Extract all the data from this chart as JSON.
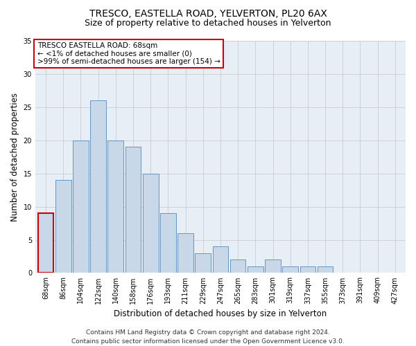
{
  "title": "TRESCO, EASTELLA ROAD, YELVERTON, PL20 6AX",
  "subtitle": "Size of property relative to detached houses in Yelverton",
  "xlabel": "Distribution of detached houses by size in Yelverton",
  "ylabel": "Number of detached properties",
  "categories": [
    "68sqm",
    "86sqm",
    "104sqm",
    "122sqm",
    "140sqm",
    "158sqm",
    "176sqm",
    "193sqm",
    "211sqm",
    "229sqm",
    "247sqm",
    "265sqm",
    "283sqm",
    "301sqm",
    "319sqm",
    "337sqm",
    "355sqm",
    "373sqm",
    "391sqm",
    "409sqm",
    "427sqm"
  ],
  "values": [
    9,
    14,
    20,
    26,
    20,
    19,
    15,
    9,
    6,
    3,
    4,
    2,
    1,
    2,
    1,
    1,
    1,
    0,
    0,
    0,
    0
  ],
  "bar_color": "#c8d8e8",
  "bar_edge_color": "#5588bb",
  "highlight_index": 0,
  "highlight_bar_edge_color": "#cc0000",
  "annotation_text": "TRESCO EASTELLA ROAD: 68sqm\n← <1% of detached houses are smaller (0)\n>99% of semi-detached houses are larger (154) →",
  "annotation_box_color": "#ffffff",
  "annotation_box_edge_color": "#cc0000",
  "ylim": [
    0,
    35
  ],
  "yticks": [
    0,
    5,
    10,
    15,
    20,
    25,
    30,
    35
  ],
  "grid_color": "#cccccc",
  "bg_color": "#e8eef5",
  "footer": "Contains HM Land Registry data © Crown copyright and database right 2024.\nContains public sector information licensed under the Open Government Licence v3.0.",
  "title_fontsize": 10,
  "subtitle_fontsize": 9,
  "axis_label_fontsize": 8.5,
  "tick_fontsize": 7,
  "annotation_fontsize": 7.5,
  "footer_fontsize": 6.5
}
